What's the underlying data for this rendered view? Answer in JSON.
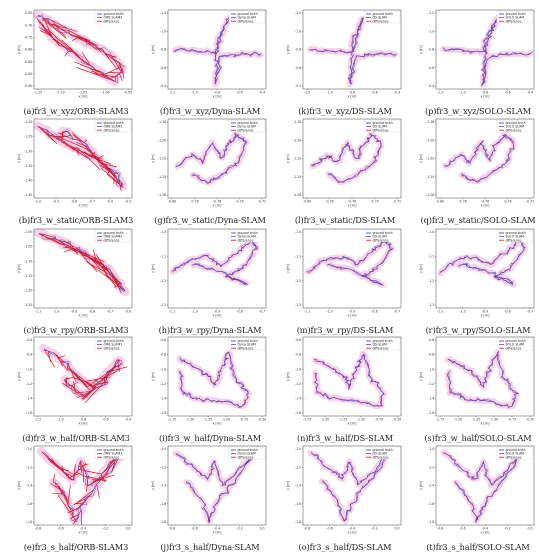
{
  "colors": {
    "ground_truth": "#1f3fbf",
    "estimate": "#7a3fb0",
    "difference": "#e0101a",
    "shade": "#f7c8e6"
  },
  "legend_labels": {
    "gt": "ground truth",
    "diff": "difference",
    "methods": {
      "ORB-SLAM3": "ORB SLAM3",
      "Dyna-SLAM": "Dyna-SLAM",
      "DS-SLAM": "DS-SLAM",
      "SOLO-SLAM": "SOLO SLAM"
    }
  },
  "axis_labels": {
    "x": "x [m]",
    "y": "y [m]"
  },
  "methods": [
    "ORB-SLAM3",
    "Dyna-SLAM",
    "DS-SLAM",
    "SOLO-SLAM"
  ],
  "rows": [
    {
      "seq": "fr3_w_xyz",
      "captions": [
        "(a)fr3_w_xyz/ORB-SLAM3",
        "(f)fr3_w_xyz/Dyna-SLAM",
        "(k)fr3_w_xyz/DS-SLAM",
        "(p)fr3_w_xyz/SOLO-SLAM"
      ],
      "xticks": [
        [
          "-1.15",
          "-1.10",
          "-1.05",
          "-1.00",
          "-0.95"
        ],
        [
          "-1.2",
          "-1.0",
          "-0.8",
          "-0.6",
          "-0.4"
        ],
        [
          "-1.2",
          "-1.0",
          "-0.8",
          "-0.6",
          "-0.4"
        ],
        [
          "-1.2",
          "-1.0",
          "-0.8",
          "-0.6",
          "-0.4"
        ]
      ],
      "yticks": [
        [
          "-0.65",
          "-0.70",
          "-0.75",
          "-0.80",
          "-0.85",
          "-0.90",
          "-0.95"
        ],
        [
          "-1.2",
          "-1.0",
          "-0.8",
          "-0.6",
          "-0.4"
        ],
        [
          "-1.2",
          "-1.0",
          "-0.8",
          "-0.6",
          "-0.4"
        ],
        [
          "-1.2",
          "-1.0",
          "-0.8",
          "-0.6",
          "-0.4"
        ]
      ]
    },
    {
      "seq": "fr3_w_static",
      "captions": [
        "(b)fr3_w_static/ORB-SLAM3",
        "(g)fr3_w_static/Dyna-SLAM",
        "(l)fr3_w_static/DS-SLAM",
        "(q)fr3_w_static/SOLO-SLAM"
      ],
      "xticks": [
        [
          "-1.0",
          "-0.9",
          "-0.8",
          "-0.7",
          "-0.6",
          "-0.5"
        ],
        [
          "-0.80",
          "-0.78",
          "-0.76",
          "-0.74",
          "-0.72"
        ],
        [
          "-0.80",
          "-0.78",
          "-0.76",
          "-0.74",
          "-0.72"
        ],
        [
          "-0.80",
          "-0.78",
          "-0.76",
          "-0.74",
          "-0.72"
        ]
      ],
      "yticks": [
        [
          "-1.20",
          "-1.25",
          "-1.30",
          "-1.35",
          "-1.40",
          "-1.45"
        ],
        [
          "-1.18",
          "-1.20",
          "-1.22",
          "-1.24",
          "-1.26"
        ],
        [
          "-1.18",
          "-1.20",
          "-1.22",
          "-1.24",
          "-1.26"
        ],
        [
          "-1.18",
          "-1.20",
          "-1.22",
          "-1.24",
          "-1.26"
        ]
      ]
    },
    {
      "seq": "fr3_w_rpy",
      "captions": [
        "(c)fr3_w_rpy/ORB-SLAM3",
        "(h)fr3_w_rpy/Dyna-SLAM",
        "(m)fr3_w_rpy/DS-SLAM",
        "(r)fr3_w_rpy/SOLO-SLAM"
      ],
      "xticks": [
        [
          "-1.1",
          "-1.0",
          "-0.9",
          "-0.8",
          "-0.7",
          "-0.6"
        ],
        [
          "-1.1",
          "-1.0",
          "-0.9",
          "-0.8",
          "-0.7"
        ],
        [
          "-1.1",
          "-1.0",
          "-0.9",
          "-0.8",
          "-0.7"
        ],
        [
          "-1.1",
          "-1.0",
          "-0.9",
          "-0.8",
          "-0.7"
        ]
      ],
      "yticks": [
        [
          "-1.00",
          "-1.05",
          "-1.10",
          "-1.15",
          "-1.20",
          "-1.25"
        ],
        [
          "-1.0",
          "-1.1",
          "-1.2",
          "-1.3"
        ],
        [
          "-1.0",
          "-1.1",
          "-1.2",
          "-1.3"
        ],
        [
          "-1.0",
          "-1.1",
          "-1.2",
          "-1.3"
        ]
      ]
    },
    {
      "seq": "fr3_w_half",
      "captions": [
        "(d)fr3_w_half/ORB-SLAM3",
        "(i)fr3_w_half/Dyna-SLAM",
        "(n)fr3_w_half/DS-SLAM",
        "(s)fr3_w_half/SOLO-SLAM"
      ],
      "xticks": [
        [
          "-1.2",
          "-1.0",
          "-0.8",
          "-0.6",
          "-0.4"
        ],
        [
          "-1.75",
          "-1.50",
          "-1.25",
          "-1.00",
          "-0.75",
          "-0.50"
        ],
        [
          "-1.75",
          "-1.50",
          "-1.25",
          "-1.00",
          "-0.75",
          "-0.50"
        ],
        [
          "-1.75",
          "-1.50",
          "-1.25",
          "-1.00",
          "-0.75",
          "-0.50"
        ]
      ],
      "yticks": [
        [
          "-0.6",
          "-0.8",
          "-1.0",
          "-1.2",
          "-1.4",
          "-1.6"
        ],
        [
          "-0.6",
          "-0.8",
          "-1.0",
          "-1.2",
          "-1.4",
          "-1.6"
        ],
        [
          "-0.6",
          "-0.8",
          "-1.0",
          "-1.2",
          "-1.4",
          "-1.6"
        ],
        [
          "-0.6",
          "-0.8",
          "-1.0",
          "-1.2",
          "-1.4",
          "-1.6"
        ]
      ]
    },
    {
      "seq": "fr3_s_half",
      "captions": [
        "(e)fr3_s_half/ORB-SLAM3",
        "(j)fr3_s_half/Dyna-SLAM",
        "(o)fr3_s_half/DS-SLAM",
        "(t)fr3_s_half/SOLO-SLAM"
      ],
      "xticks": [
        [
          "-0.8",
          "-0.6",
          "-0.4",
          "-0.2",
          "0.0"
        ],
        [
          "-0.8",
          "-0.6",
          "-0.4",
          "-0.2",
          "0.0"
        ],
        [
          "-0.8",
          "-0.6",
          "-0.4",
          "-0.2",
          "0.0"
        ],
        [
          "-0.8",
          "-0.6",
          "-0.4",
          "-0.2",
          "0.0"
        ]
      ],
      "yticks": [
        [
          "-1.0",
          "-1.2",
          "-1.4",
          "-1.6",
          "-1.8"
        ],
        [
          "-1.0",
          "-1.2",
          "-1.4",
          "-1.6",
          "-1.8"
        ],
        [
          "-1.0",
          "-1.2",
          "-1.4",
          "-1.6",
          "-1.8"
        ],
        [
          "-1.0",
          "-1.2",
          "-1.4",
          "-1.6",
          "-1.8"
        ]
      ]
    }
  ],
  "chart_data": {
    "type": "scatter",
    "description_fields": [
      "x",
      "y"
    ],
    "panels": {
      "fr3_w_xyz": {
        "path": [
          [
            -1.14,
            -0.64
          ],
          [
            -1.12,
            -0.68
          ],
          [
            -1.05,
            -0.72
          ],
          [
            -1.0,
            -0.76
          ],
          [
            -0.97,
            -0.8
          ],
          [
            -0.95,
            -0.84
          ],
          [
            -0.96,
            -0.88
          ],
          [
            -1.0,
            -0.82
          ],
          [
            -1.06,
            -0.76
          ],
          [
            -1.1,
            -0.7
          ]
        ],
        "path_alt": [
          [
            -1.0,
            -0.6
          ],
          [
            -0.9,
            -0.5
          ],
          [
            -0.8,
            -0.4
          ],
          [
            -0.75,
            -0.3
          ],
          [
            -0.72,
            -0.8
          ],
          [
            -0.7,
            -1.0
          ],
          [
            -0.7,
            -1.2
          ],
          [
            -0.7,
            -1.3
          ],
          [
            -0.9,
            -0.8
          ],
          [
            -1.2,
            -0.78
          ],
          [
            -0.4,
            -0.8
          ]
        ]
      },
      "fr3_w_static": {
        "path": [
          [
            -0.98,
            -1.22
          ],
          [
            -0.9,
            -1.26
          ],
          [
            -0.82,
            -1.3
          ],
          [
            -0.74,
            -1.33
          ],
          [
            -0.66,
            -1.36
          ],
          [
            -0.58,
            -1.4
          ],
          [
            -0.55,
            -1.44
          ],
          [
            -0.62,
            -1.36
          ],
          [
            -0.72,
            -1.3
          ],
          [
            -0.85,
            -1.24
          ]
        ]
      },
      "fr3_w_rpy": {
        "path": [
          [
            -1.05,
            -1.02
          ],
          [
            -0.95,
            -1.05
          ],
          [
            -0.85,
            -1.08
          ],
          [
            -0.78,
            -1.12
          ],
          [
            -0.7,
            -1.16
          ],
          [
            -0.65,
            -1.2
          ],
          [
            -0.72,
            -1.18
          ],
          [
            -0.82,
            -1.12
          ],
          [
            -0.92,
            -1.06
          ]
        ]
      },
      "fr3_w_half": {
        "path": [
          [
            -1.6,
            -0.7
          ],
          [
            -1.4,
            -0.8
          ],
          [
            -1.2,
            -0.95
          ],
          [
            -1.05,
            -1.1
          ],
          [
            -0.9,
            -0.9
          ],
          [
            -0.75,
            -0.7
          ],
          [
            -0.6,
            -1.0
          ],
          [
            -0.55,
            -1.4
          ],
          [
            -0.75,
            -1.5
          ],
          [
            -1.0,
            -1.4
          ],
          [
            -1.3,
            -1.25
          ],
          [
            -1.6,
            -1.1
          ],
          [
            -1.7,
            -0.9
          ]
        ]
      },
      "fr3_s_half": {
        "path": [
          [
            -0.75,
            -1.0
          ],
          [
            -0.55,
            -1.2
          ],
          [
            -0.45,
            -1.3
          ],
          [
            -0.4,
            -1.0
          ],
          [
            -0.35,
            -1.4
          ],
          [
            -0.1,
            -1.05
          ],
          [
            0.0,
            -1.0
          ],
          [
            -0.2,
            -1.3
          ],
          [
            -0.35,
            -1.5
          ],
          [
            -0.45,
            -1.8
          ],
          [
            -0.5,
            -1.5
          ],
          [
            -0.7,
            -1.2
          ]
        ]
      }
    }
  }
}
